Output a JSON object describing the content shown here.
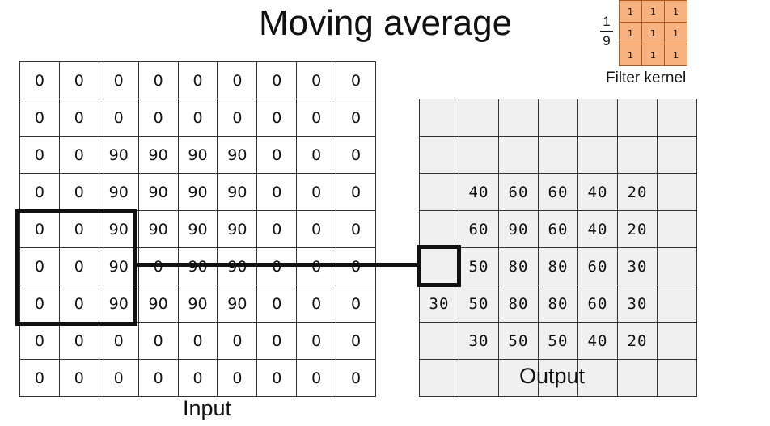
{
  "title": "Moving average",
  "input": {
    "label": "Input",
    "rows": [
      [
        "0",
        "0",
        "0",
        "0",
        "0",
        "0",
        "0",
        "0",
        "0"
      ],
      [
        "0",
        "0",
        "0",
        "0",
        "0",
        "0",
        "0",
        "0",
        "0"
      ],
      [
        "0",
        "0",
        "90",
        "90",
        "90",
        "90",
        "0",
        "0",
        "0"
      ],
      [
        "0",
        "0",
        "90",
        "90",
        "90",
        "90",
        "0",
        "0",
        "0"
      ],
      [
        "0",
        "0",
        "90",
        "90",
        "90",
        "90",
        "0",
        "0",
        "0"
      ],
      [
        "0",
        "0",
        "90",
        "0",
        "90",
        "90",
        "0",
        "0",
        "0"
      ],
      [
        "0",
        "0",
        "90",
        "90",
        "90",
        "90",
        "0",
        "0",
        "0"
      ],
      [
        "0",
        "0",
        "0",
        "0",
        "0",
        "0",
        "0",
        "0",
        "0"
      ],
      [
        "0",
        "0",
        "0",
        "0",
        "0",
        "0",
        "0",
        "0",
        "0"
      ]
    ]
  },
  "output": {
    "label": "Output",
    "rows": [
      [
        "",
        "",
        "",
        "",
        "",
        "",
        ""
      ],
      [
        "",
        "",
        "",
        "",
        "",
        "",
        ""
      ],
      [
        "",
        "40",
        "60",
        "60",
        "40",
        "20",
        ""
      ],
      [
        "",
        "60",
        "90",
        "60",
        "40",
        "20",
        ""
      ],
      [
        "",
        "50",
        "80",
        "80",
        "60",
        "30",
        ""
      ],
      [
        "30",
        "50",
        "80",
        "80",
        "60",
        "30",
        ""
      ],
      [
        "",
        "30",
        "50",
        "50",
        "40",
        "20",
        ""
      ],
      [
        "",
        "",
        "",
        "",
        "",
        "",
        ""
      ]
    ]
  },
  "kernel": {
    "label": "Filter kernel",
    "fraction_numerator": "1",
    "fraction_denominator": "9",
    "values": [
      [
        "1",
        "1",
        "1"
      ],
      [
        "1",
        "1",
        "1"
      ],
      [
        "1",
        "1",
        "1"
      ]
    ],
    "fill_color": "#f7b27f"
  }
}
